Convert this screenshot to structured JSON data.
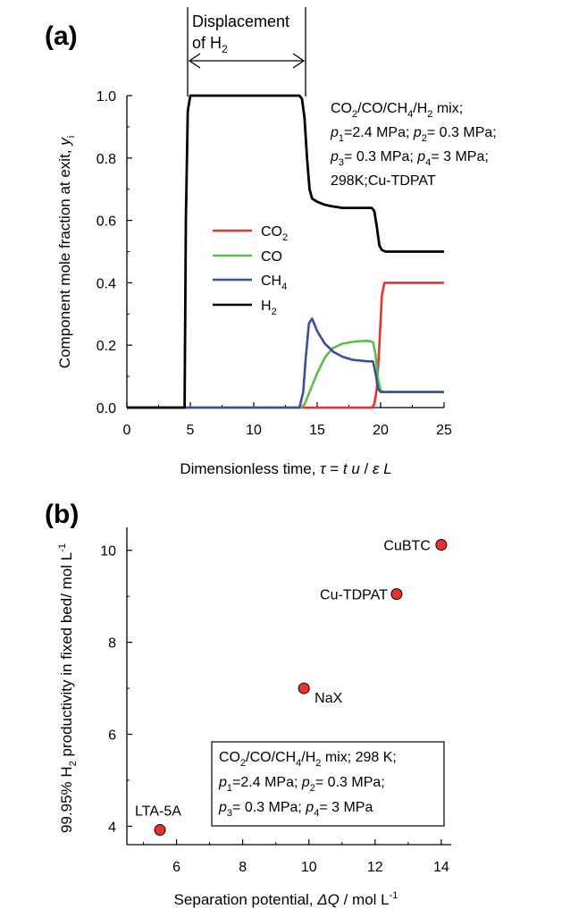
{
  "chart_data": [
    {
      "panel_label": "(a)",
      "type": "line",
      "xlabel": "Dimensionless time, τ = t u / ε L",
      "xlabel_parts": {
        "pre": "Dimensionless time, ",
        "tau": "τ",
        "eq": " = ",
        "t": "t",
        "u": " u",
        "slash": " / ",
        "eps": "ε",
        "L": " L"
      },
      "ylabel": "Component mole fraction at exit, yi",
      "ylabel_parts": {
        "pre": "Component mole fraction at exit, ",
        "y": "y",
        "sub": "i"
      },
      "xlim": [
        0,
        25
      ],
      "ylim": [
        0,
        1.0
      ],
      "xticks": [
        "0",
        "5",
        "10",
        "15",
        "20",
        "25"
      ],
      "yticks": [
        "0.0",
        "0.2",
        "0.4",
        "0.6",
        "0.8",
        "1.0"
      ],
      "grid": false,
      "legend_position": "center",
      "annotation": {
        "line1": "Displacement",
        "line2_pre": "of H",
        "line2_sub": "2"
      },
      "conditions": {
        "l1_pre": "CO",
        "l1_sub1": "2",
        "l1_mid": "/CO/CH",
        "l1_sub2": "4",
        "l1_mid2": "/H",
        "l1_sub3": "2",
        "l1_post": " mix;",
        "l2_p1": "p",
        "l2_s1": "1",
        "l2_t1": "=2.4 MPa; ",
        "l2_p2": "p",
        "l2_s2": "2",
        "l2_t2": "= 0.3 MPa;",
        "l3_p3": "p",
        "l3_s3": "3",
        "l3_t3": "= 0.3 MPa; ",
        "l3_p4": "p",
        "l3_s4": "4",
        "l3_t4": "= 3 MPa;",
        "l4": "298K;Cu-TDPAT"
      },
      "series": [
        {
          "name": "CO2",
          "label_base": "CO",
          "label_sub": "2",
          "color": "#e8322d",
          "x": [
            0,
            19.3,
            19.5,
            19.7,
            19.9,
            20.1,
            20.3,
            25
          ],
          "y": [
            0,
            0,
            0.01,
            0.06,
            0.2,
            0.36,
            0.4,
            0.4
          ]
        },
        {
          "name": "CO",
          "label_base": "CO",
          "label_sub": "",
          "color": "#5bbd4a",
          "x": [
            0,
            13.7,
            14.0,
            14.5,
            15.0,
            15.6,
            16.2,
            17.0,
            18.0,
            19.0,
            19.4,
            19.6,
            19.8,
            20.0,
            20.3,
            25
          ],
          "y": [
            0,
            0,
            0.01,
            0.06,
            0.11,
            0.16,
            0.19,
            0.205,
            0.212,
            0.214,
            0.21,
            0.17,
            0.09,
            0.055,
            0.05,
            0.05
          ]
        },
        {
          "name": "CH4",
          "label_base": "CH",
          "label_sub": "4",
          "color": "#3a4ea0",
          "x": [
            0,
            13.6,
            13.9,
            14.1,
            14.35,
            14.6,
            15.0,
            15.6,
            16.3,
            17.0,
            17.8,
            19.0,
            19.4,
            19.6,
            19.8,
            20.0,
            25
          ],
          "y": [
            0,
            0,
            0.05,
            0.16,
            0.27,
            0.285,
            0.245,
            0.205,
            0.178,
            0.163,
            0.153,
            0.148,
            0.148,
            0.11,
            0.06,
            0.05,
            0.05
          ]
        },
        {
          "name": "H2",
          "label_base": "H",
          "label_sub": "2",
          "color": "#000000",
          "x": [
            0,
            4.55,
            4.65,
            4.8,
            5.0,
            13.6,
            13.8,
            14.0,
            14.2,
            14.4,
            14.6,
            15.0,
            15.6,
            16.2,
            17.0,
            19.3,
            19.5,
            19.7,
            19.9,
            20.1,
            20.4,
            25
          ],
          "y": [
            0,
            0,
            0.6,
            0.95,
            1.0,
            1.0,
            0.99,
            0.93,
            0.8,
            0.7,
            0.67,
            0.66,
            0.65,
            0.645,
            0.64,
            0.64,
            0.63,
            0.58,
            0.52,
            0.505,
            0.5,
            0.5
          ]
        }
      ]
    },
    {
      "panel_label": "(b)",
      "type": "scatter",
      "xlabel": "Separation potential, ΔQ / mol L-1",
      "xlabel_parts": {
        "pre": "Separation potential, ",
        "dq": "ΔQ",
        "post": " / mol L",
        "sup": "-1"
      },
      "ylabel": "99.95% H2 productivity in fixed bed/ mol L-1",
      "ylabel_parts": {
        "pre": "99.95% H",
        "sub": "2",
        "post": " productivity in fixed bed/ mol L",
        "sup": "-1"
      },
      "xlim": [
        4.5,
        14.3
      ],
      "ylim": [
        3.6,
        10.5
      ],
      "xticks": [
        "6",
        "8",
        "10",
        "12",
        "14"
      ],
      "yticks": [
        "4",
        "6",
        "8",
        "10"
      ],
      "grid": false,
      "marker_color": "#e8322d",
      "points": [
        {
          "label": "LTA-5A",
          "x": 5.5,
          "y": 3.92
        },
        {
          "label": "NaX",
          "x": 9.85,
          "y": 7.0
        },
        {
          "label": "Cu-TDPAT",
          "x": 12.65,
          "y": 9.05
        },
        {
          "label": "CuBTC",
          "x": 14.0,
          "y": 10.12
        }
      ],
      "conditions": {
        "l1_pre": "CO",
        "l1_sub1": "2",
        "l1_mid": "/CO/CH",
        "l1_sub2": "4",
        "l1_mid2": "/H",
        "l1_sub3": "2",
        "l1_post": " mix; 298 K;",
        "l2_p1": "p",
        "l2_s1": "1",
        "l2_t1": "=2.4 MPa; ",
        "l2_p2": "p",
        "l2_s2": "2",
        "l2_t2": "= 0.3 MPa;",
        "l3_p3": "p",
        "l3_s3": "3",
        "l3_t3": "= 0.3 MPa; ",
        "l3_p4": "p",
        "l3_s4": "4",
        "l3_t4": "= 3 MPa"
      }
    }
  ]
}
